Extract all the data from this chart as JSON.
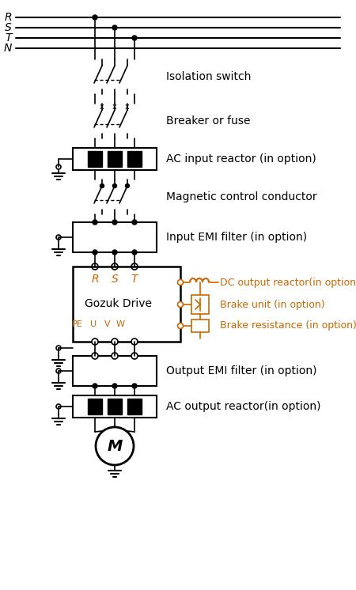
{
  "bg_color": "#ffffff",
  "line_color": "#000000",
  "orange_color": "#cc6600",
  "labels": {
    "isolation_switch": "Isolation switch",
    "breaker_fuse": "Breaker or fuse",
    "ac_input_reactor": "AC input reactor (in option)",
    "magnetic_control": "Magnetic control conductor",
    "input_emi": "Input EMI filter (in option)",
    "dc_output_reactor": "DC output reactor(in option)",
    "brake_unit": "Brake unit (in option)",
    "brake_resistance": "Brake resistance (in option)",
    "output_emi": "Output EMI filter (in option)",
    "ac_output_reactor": "AC output reactor(in option)",
    "gozuk_drive": "Gozuk Drive",
    "rst": [
      "R",
      "S",
      "T"
    ],
    "peuvw": [
      "PE",
      "U",
      "V",
      "W"
    ],
    "rstn": [
      "R",
      "S",
      "T",
      "N"
    ],
    "motor": "M"
  },
  "figsize": [
    4.5,
    7.46
  ],
  "dpi": 100
}
